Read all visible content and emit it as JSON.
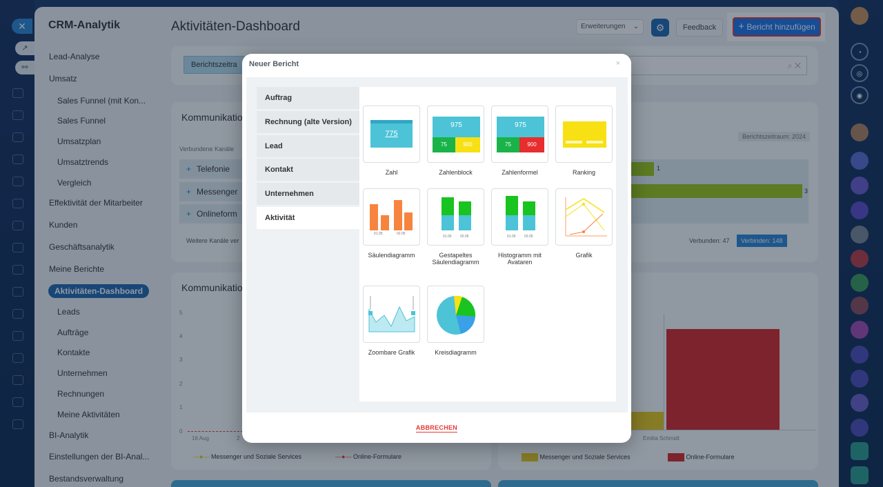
{
  "app": {
    "title": "CRM-Analytik"
  },
  "page": {
    "title": "Aktivitäten-Dashboard"
  },
  "header": {
    "extensions_label": "Erweiterungen",
    "feedback_label": "Feedback",
    "add_report_label": "Bericht hinzufügen",
    "add_report_icon": "plus-icon"
  },
  "sidebar": {
    "items": [
      {
        "label": "Lead-Analyse"
      },
      {
        "label": "Umsatz"
      },
      {
        "label": "Sales Funnel (mit Kon..."
      },
      {
        "label": "Sales Funnel"
      },
      {
        "label": "Umsatzplan"
      },
      {
        "label": "Umsatztrends"
      },
      {
        "label": "Vergleich"
      },
      {
        "label": "Effektivität der Mitarbeiter"
      },
      {
        "label": "Kunden"
      },
      {
        "label": "Geschäftsanalytik"
      },
      {
        "label": "Meine Berichte"
      },
      {
        "label": "Aktivitäten-Dashboard"
      },
      {
        "label": "Leads"
      },
      {
        "label": "Aufträge"
      },
      {
        "label": "Kontakte"
      },
      {
        "label": "Unternehmen"
      },
      {
        "label": "Rechnungen"
      },
      {
        "label": "Meine Aktivitäten"
      },
      {
        "label": "BI-Analytik"
      },
      {
        "label": "Einstellungen der BI-Anal..."
      },
      {
        "label": "Bestandsverwaltung"
      }
    ]
  },
  "filter": {
    "chip": "Berichtszeitra"
  },
  "card1": {
    "title": "Kommunikatio",
    "subtitle": "Verbundene Kanäle",
    "period": "Berichtszeitraum: 2024",
    "channels": [
      {
        "label": "Telefonie",
        "count": "1"
      },
      {
        "label": "Messenger",
        "count": "3"
      },
      {
        "label": "Onlineform",
        "count": ""
      }
    ],
    "more": "Weitere Kanäle ver",
    "connected": "Verbunden: 47",
    "connect": "Verbinden: 148"
  },
  "card2": {
    "title": "Kommunikatio",
    "y_ticks": [
      "5",
      "4",
      "3",
      "2",
      "1",
      "0"
    ],
    "x_start": "16 Aug",
    "x_next": "2",
    "person": "Emilia Schmidt",
    "legend_left": [
      "Messenger und Soziale Services",
      "Online-Formulare"
    ],
    "legend_right": [
      "Messenger und Soziale Services",
      "Online-Formulare"
    ]
  },
  "colors": {
    "accent": "#2066b0",
    "add_button": "#1a73e8",
    "yellow": "#e8c81c",
    "red": "#d62728",
    "green": "#9cc616"
  },
  "modal": {
    "title": "Neuer Bericht",
    "close": "×",
    "cancel": "ABBRECHEN",
    "tabs": [
      "Auftrag",
      "Rechnung (alte Version)",
      "Lead",
      "Kontakt",
      "Unternehmen",
      "Aktivität"
    ],
    "active_tab": "Aktivität",
    "tiles": [
      {
        "label": "Zahl",
        "value": "775"
      },
      {
        "label": "Zahlenblock",
        "values": [
          "975",
          "75",
          "900"
        ]
      },
      {
        "label": "Zahlenformel",
        "values": [
          "975",
          "75",
          "900"
        ]
      },
      {
        "label": "Ranking"
      },
      {
        "label": "Säulendiagramm",
        "x_labels": [
          "01.05",
          "02.05"
        ]
      },
      {
        "label": "Gestapeltes Säulendiagramm",
        "x_labels": [
          "01.05",
          "02.05"
        ]
      },
      {
        "label": "Histogramm mit Avataren",
        "x_labels": [
          "01.05",
          "02.05"
        ]
      },
      {
        "label": "Grafik"
      },
      {
        "label": "Zoombare Grafik"
      },
      {
        "label": "Kreisdiagramm"
      }
    ]
  }
}
